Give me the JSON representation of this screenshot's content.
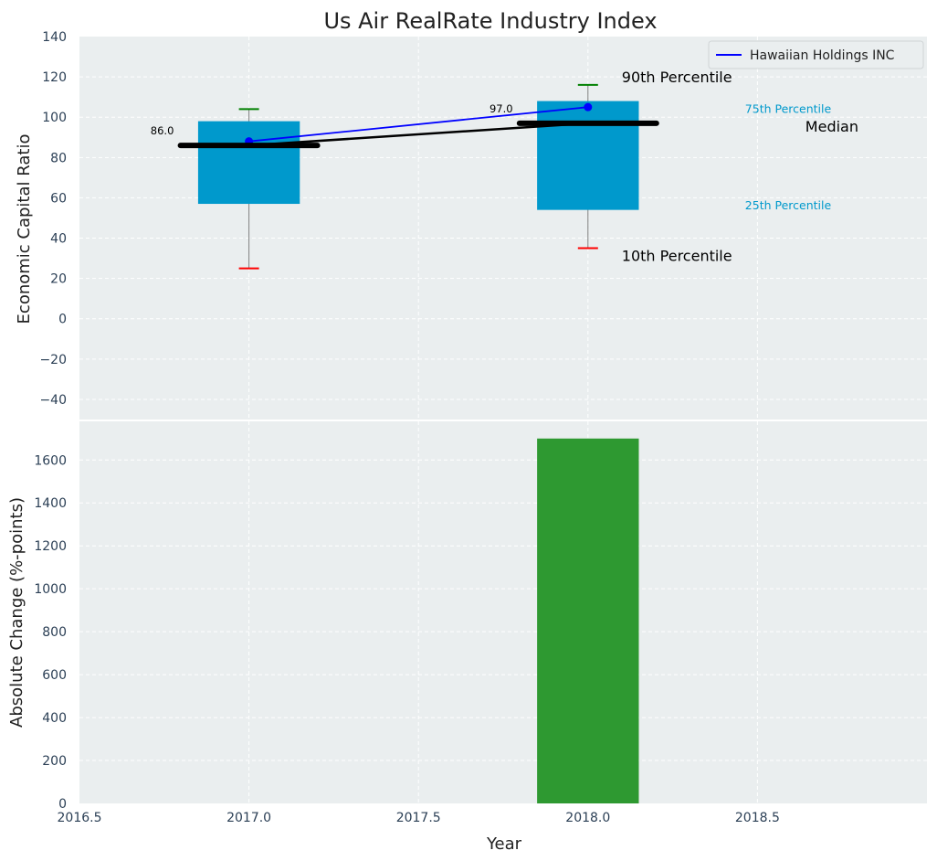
{
  "title": "Us Air RealRate Industry Index",
  "xlabel": "Year",
  "colors": {
    "background": "#eaeeef",
    "grid": "#ffffff",
    "box": "#0099cc",
    "median": "#000000",
    "company_line": "#0000ff",
    "p90_cap": "#008000",
    "p10_cap": "#ff0000",
    "whisker": "#808080",
    "bar": "#2e9931",
    "tick_text": "#2b3f55",
    "annotation_cyan": "#0099cc"
  },
  "chart_data": [
    {
      "type": "box",
      "ylabel": "Economic Capital Ratio",
      "xlim": [
        2016.5,
        2019.0
      ],
      "ylim": [
        -50,
        140
      ],
      "yticks": [
        -40,
        -20,
        0,
        20,
        40,
        60,
        80,
        100,
        120,
        140
      ],
      "ytick_labels": [
        "−40",
        "−20",
        "0",
        "20",
        "40",
        "60",
        "80",
        "100",
        "120",
        "140"
      ],
      "grid": true,
      "box_width": 0.3,
      "boxes": [
        {
          "x": 2017.0,
          "p10": 25,
          "p25": 57,
          "median": 86,
          "p75": 98,
          "p90": 104,
          "median_label": "86.0"
        },
        {
          "x": 2018.0,
          "p10": 35,
          "p25": 54,
          "median": 97,
          "p75": 108,
          "p90": 116,
          "median_label": "97.0"
        }
      ],
      "median_trend": {
        "x": [
          2017.0,
          2018.0
        ],
        "y": [
          86,
          97
        ]
      },
      "series": [
        {
          "name": "Hawaiian Holdings INC",
          "x": [
            2017.0,
            2018.0
          ],
          "y": [
            88,
            105
          ]
        }
      ],
      "legend": {
        "position": "top-right",
        "entries": [
          "Hawaiian Holdings INC"
        ]
      },
      "annotations": {
        "p90": "90th Percentile",
        "p75": "75th Percentile",
        "median": "Median",
        "p25": "25th Percentile",
        "p10": "10th Percentile"
      }
    },
    {
      "type": "bar",
      "ylabel": "Absolute Change (%-points)",
      "xlim": [
        2016.5,
        2019.0
      ],
      "ylim": [
        0,
        1780
      ],
      "yticks": [
        0,
        200,
        400,
        600,
        800,
        1000,
        1200,
        1400,
        1600
      ],
      "ytick_labels": [
        "0",
        "200",
        "400",
        "600",
        "800",
        "1000",
        "1200",
        "1400",
        "1600"
      ],
      "xticks": [
        2016.5,
        2017.0,
        2017.5,
        2018.0,
        2018.5
      ],
      "xtick_labels": [
        "2016.5",
        "2017.0",
        "2017.5",
        "2018.0",
        "2018.5"
      ],
      "grid": true,
      "bar_width": 0.3,
      "bars": [
        {
          "x": 2018.0,
          "value": 1700
        }
      ]
    }
  ]
}
